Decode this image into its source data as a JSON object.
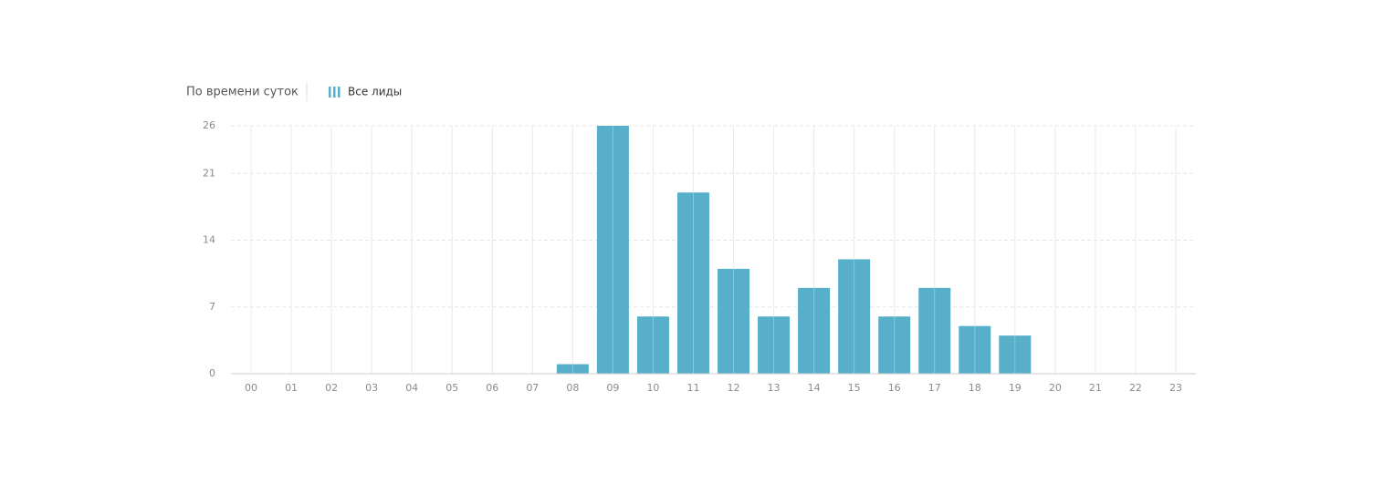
{
  "chart_data": {
    "type": "bar",
    "title": "По времени суток",
    "categories": [
      "00",
      "01",
      "02",
      "03",
      "04",
      "05",
      "06",
      "07",
      "08",
      "09",
      "10",
      "11",
      "12",
      "13",
      "14",
      "15",
      "16",
      "17",
      "18",
      "19",
      "20",
      "21",
      "22",
      "23"
    ],
    "series": [
      {
        "name": "Все лиды",
        "color": "#58afc9",
        "values": [
          0,
          0,
          0,
          0,
          0,
          0,
          0,
          0,
          1,
          26,
          6,
          19,
          11,
          6,
          9,
          12,
          6,
          9,
          5,
          4,
          0,
          0,
          0,
          0
        ]
      }
    ],
    "ylim": [
      0,
      26
    ],
    "yticks": [
      0,
      7,
      14,
      21,
      26
    ],
    "grid": true
  }
}
